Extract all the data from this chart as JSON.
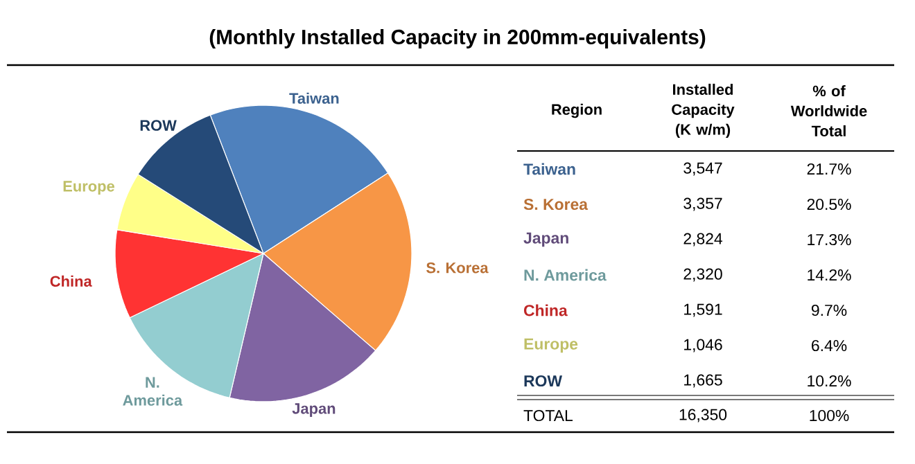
{
  "chart_data": {
    "type": "pie",
    "title": "(Monthly Installed Capacity in 200mm-equivalents)",
    "categories": [
      "Taiwan",
      "S. Korea",
      "Japan",
      "N. America",
      "China",
      "Europe",
      "ROW"
    ],
    "values": [
      21.7,
      20.5,
      17.3,
      14.2,
      9.7,
      6.4,
      10.2
    ],
    "colors": [
      "#4f81bd",
      "#f79646",
      "#8064a2",
      "#93cdd0",
      "#ff3333",
      "#ffff88",
      "#254a78"
    ],
    "annotations": [
      "Region",
      "Installed Capacity (K w/m)",
      "% of Worldwide Total",
      "3,547",
      "3,357",
      "2,824",
      "2,320",
      "1,591",
      "1,046",
      "1,665",
      "21.7%",
      "20.5%",
      "17.3%",
      "14.2%",
      "9.7%",
      "6.4%",
      "10.2%",
      "TOTAL",
      "16,350",
      "100%"
    ]
  }
}
